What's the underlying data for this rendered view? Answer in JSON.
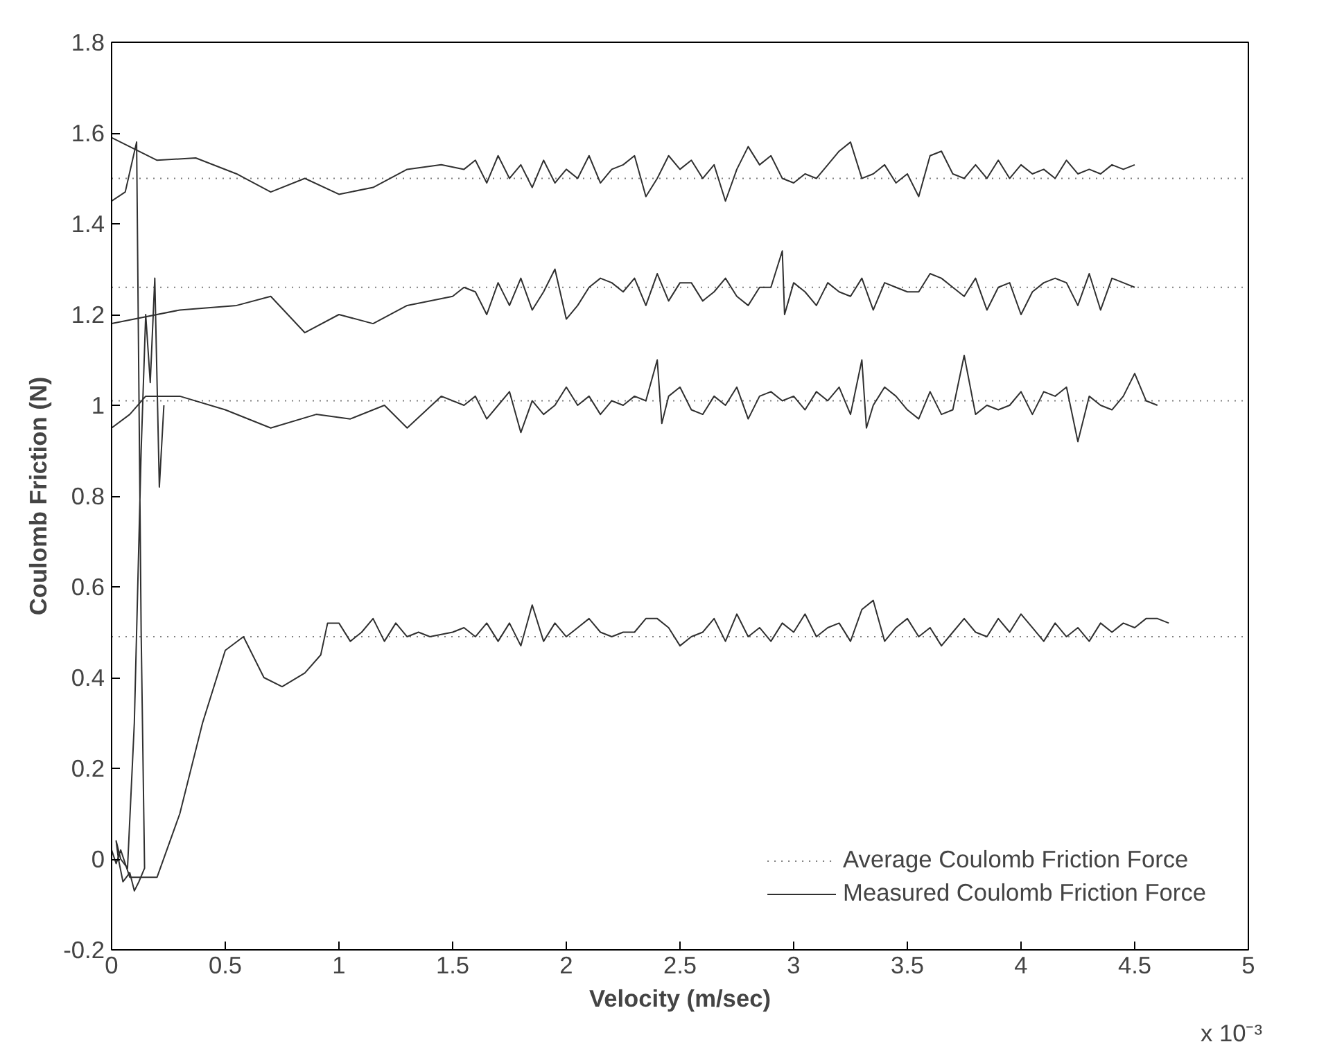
{
  "chart_data": {
    "type": "line",
    "xlabel": "Velocity (m/sec)",
    "ylabel": "Coulomb Friction (N)",
    "xlim": [
      0,
      5
    ],
    "ylim": [
      -0.2,
      1.8
    ],
    "xticks": [
      0,
      0.5,
      1,
      1.5,
      2,
      2.5,
      3,
      3.5,
      4,
      4.5,
      5
    ],
    "yticks": [
      -0.2,
      0,
      0.2,
      0.4,
      0.6,
      0.8,
      1,
      1.2,
      1.4,
      1.6,
      1.8
    ],
    "legend": "bottom right",
    "annotations": [
      "x 10⁻³"
    ],
    "series": [
      {
        "name": "Average Coulomb Friction Force",
        "color": "#808080",
        "line_style": "dotted",
        "x": [
          0,
          5
        ],
        "values": [
          1.5,
          1.5
        ]
      },
      {
        "color": "#808080",
        "line_style": "dotted",
        "x": [
          0,
          5
        ],
        "values": [
          1.26,
          1.26
        ]
      },
      {
        "color": "#808080",
        "line_style": "dotted",
        "x": [
          0,
          5
        ],
        "values": [
          1.01,
          1.01
        ]
      },
      {
        "color": "#808080",
        "line_style": "dotted",
        "x": [
          0,
          5
        ],
        "values": [
          0.49,
          0.49
        ]
      },
      {
        "name": "Measured Coulomb Friction Force",
        "color": "#303030",
        "line_style": "solid",
        "x": [
          0,
          0.2,
          0.37,
          0.55,
          0.7,
          0.85,
          1.0,
          1.15,
          1.3,
          1.45,
          1.55,
          1.6,
          1.65,
          1.7,
          1.75,
          1.8,
          1.85,
          1.9,
          1.95,
          2.0,
          2.05,
          2.1,
          2.15,
          2.2,
          2.25,
          2.3,
          2.35,
          2.4,
          2.45,
          2.5,
          2.55,
          2.6,
          2.65,
          2.7,
          2.75,
          2.8,
          2.85,
          2.9,
          2.95,
          3.0,
          3.05,
          3.1,
          3.15,
          3.2,
          3.25,
          3.3,
          3.35,
          3.4,
          3.45,
          3.5,
          3.55,
          3.6,
          3.65,
          3.7,
          3.75,
          3.8,
          3.85,
          3.9,
          3.95,
          4.0,
          4.05,
          4.1,
          4.15,
          4.2,
          4.25,
          4.3,
          4.35,
          4.4,
          4.45,
          4.5
        ],
        "values": [
          1.59,
          1.54,
          1.545,
          1.51,
          1.47,
          1.5,
          1.465,
          1.48,
          1.52,
          1.53,
          1.52,
          1.54,
          1.49,
          1.55,
          1.5,
          1.53,
          1.48,
          1.54,
          1.49,
          1.52,
          1.5,
          1.55,
          1.49,
          1.52,
          1.53,
          1.55,
          1.46,
          1.5,
          1.55,
          1.52,
          1.54,
          1.5,
          1.53,
          1.45,
          1.52,
          1.57,
          1.53,
          1.55,
          1.5,
          1.49,
          1.51,
          1.5,
          1.53,
          1.56,
          1.58,
          1.5,
          1.51,
          1.53,
          1.49,
          1.51,
          1.46,
          1.55,
          1.56,
          1.51,
          1.5,
          1.53,
          1.5,
          1.54,
          1.5,
          1.53,
          1.51,
          1.52,
          1.5,
          1.54,
          1.51,
          1.52,
          1.51,
          1.53,
          1.52,
          1.53
        ]
      },
      {
        "color": "#303030",
        "line_style": "solid",
        "x": [
          0,
          0.3,
          0.55,
          0.7,
          0.85,
          1.0,
          1.15,
          1.3,
          1.5,
          1.55,
          1.6,
          1.65,
          1.7,
          1.75,
          1.8,
          1.85,
          1.9,
          1.95,
          2.0,
          2.05,
          2.1,
          2.15,
          2.2,
          2.25,
          2.3,
          2.35,
          2.4,
          2.45,
          2.5,
          2.55,
          2.6,
          2.65,
          2.7,
          2.75,
          2.8,
          2.85,
          2.9,
          2.95,
          2.96,
          3.0,
          3.05,
          3.1,
          3.15,
          3.2,
          3.25,
          3.3,
          3.35,
          3.4,
          3.45,
          3.5,
          3.55,
          3.6,
          3.65,
          3.7,
          3.75,
          3.8,
          3.85,
          3.9,
          3.95,
          4.0,
          4.05,
          4.1,
          4.15,
          4.2,
          4.25,
          4.3,
          4.35,
          4.4,
          4.45,
          4.5
        ],
        "values": [
          1.18,
          1.21,
          1.22,
          1.24,
          1.16,
          1.2,
          1.18,
          1.22,
          1.24,
          1.26,
          1.25,
          1.2,
          1.27,
          1.22,
          1.28,
          1.21,
          1.25,
          1.3,
          1.19,
          1.22,
          1.26,
          1.28,
          1.27,
          1.25,
          1.28,
          1.22,
          1.29,
          1.23,
          1.27,
          1.27,
          1.23,
          1.25,
          1.28,
          1.24,
          1.22,
          1.26,
          1.26,
          1.34,
          1.2,
          1.27,
          1.25,
          1.22,
          1.27,
          1.25,
          1.24,
          1.28,
          1.21,
          1.27,
          1.26,
          1.25,
          1.25,
          1.29,
          1.28,
          1.26,
          1.24,
          1.28,
          1.21,
          1.26,
          1.27,
          1.2,
          1.25,
          1.27,
          1.28,
          1.27,
          1.22,
          1.29,
          1.21,
          1.28,
          1.27,
          1.26
        ]
      },
      {
        "color": "#303030",
        "line_style": "solid",
        "x": [
          0,
          0.08,
          0.15,
          0.3,
          0.5,
          0.7,
          0.9,
          1.05,
          1.2,
          1.3,
          1.45,
          1.55,
          1.6,
          1.65,
          1.7,
          1.75,
          1.8,
          1.85,
          1.9,
          1.95,
          2.0,
          2.05,
          2.1,
          2.15,
          2.2,
          2.25,
          2.3,
          2.35,
          2.4,
          2.42,
          2.45,
          2.5,
          2.55,
          2.6,
          2.65,
          2.7,
          2.75,
          2.8,
          2.85,
          2.9,
          2.95,
          3.0,
          3.05,
          3.1,
          3.15,
          3.2,
          3.25,
          3.3,
          3.32,
          3.35,
          3.4,
          3.45,
          3.5,
          3.55,
          3.6,
          3.65,
          3.7,
          3.75,
          3.8,
          3.85,
          3.9,
          3.95,
          4.0,
          4.05,
          4.1,
          4.15,
          4.2,
          4.25,
          4.3,
          4.35,
          4.4,
          4.45,
          4.5,
          4.55,
          4.6
        ],
        "values": [
          0.95,
          0.98,
          1.02,
          1.02,
          0.99,
          0.95,
          0.98,
          0.97,
          1.0,
          0.95,
          1.02,
          1.0,
          1.02,
          0.97,
          1.0,
          1.03,
          0.94,
          1.01,
          0.98,
          1.0,
          1.04,
          1.0,
          1.02,
          0.98,
          1.01,
          1.0,
          1.02,
          1.01,
          1.1,
          0.96,
          1.02,
          1.04,
          0.99,
          0.98,
          1.02,
          1.0,
          1.04,
          0.97,
          1.02,
          1.03,
          1.01,
          1.02,
          0.99,
          1.03,
          1.01,
          1.04,
          0.98,
          1.1,
          0.95,
          1.0,
          1.04,
          1.02,
          0.99,
          0.97,
          1.03,
          0.98,
          0.99,
          1.11,
          0.98,
          1.0,
          0.99,
          1.0,
          1.03,
          0.98,
          1.03,
          1.02,
          1.04,
          0.92,
          1.02,
          1.0,
          0.99,
          1.02,
          1.07,
          1.01,
          1.0
        ]
      },
      {
        "color": "#303030",
        "line_style": "solid",
        "x": [
          0,
          0.02,
          0.04,
          0.06,
          0.08,
          0.1,
          0.2,
          0.3,
          0.4,
          0.5,
          0.58,
          0.67,
          0.75,
          0.85,
          0.92,
          0.95,
          1.0,
          1.05,
          1.1,
          1.15,
          1.2,
          1.25,
          1.3,
          1.35,
          1.4,
          1.5,
          1.55,
          1.6,
          1.65,
          1.7,
          1.75,
          1.8,
          1.85,
          1.9,
          1.95,
          2.0,
          2.05,
          2.1,
          2.15,
          2.2,
          2.25,
          2.3,
          2.35,
          2.4,
          2.45,
          2.5,
          2.55,
          2.6,
          2.65,
          2.7,
          2.75,
          2.8,
          2.85,
          2.9,
          2.95,
          3.0,
          3.05,
          3.1,
          3.15,
          3.2,
          3.25,
          3.3,
          3.35,
          3.4,
          3.45,
          3.5,
          3.55,
          3.6,
          3.65,
          3.7,
          3.75,
          3.8,
          3.85,
          3.9,
          3.95,
          4.0,
          4.05,
          4.1,
          4.15,
          4.2,
          4.25,
          4.3,
          4.35,
          4.4,
          4.45,
          4.5,
          4.55,
          4.6,
          4.65
        ],
        "values": [
          0.02,
          -0.01,
          0.02,
          -0.01,
          -0.04,
          -0.04,
          -0.04,
          0.1,
          0.3,
          0.46,
          0.49,
          0.4,
          0.38,
          0.41,
          0.45,
          0.52,
          0.52,
          0.48,
          0.5,
          0.53,
          0.48,
          0.52,
          0.49,
          0.5,
          0.49,
          0.5,
          0.51,
          0.49,
          0.52,
          0.48,
          0.52,
          0.47,
          0.56,
          0.48,
          0.52,
          0.49,
          0.51,
          0.53,
          0.5,
          0.49,
          0.5,
          0.5,
          0.53,
          0.53,
          0.51,
          0.47,
          0.49,
          0.5,
          0.53,
          0.48,
          0.54,
          0.49,
          0.51,
          0.48,
          0.52,
          0.5,
          0.54,
          0.49,
          0.51,
          0.52,
          0.48,
          0.55,
          0.57,
          0.48,
          0.51,
          0.53,
          0.49,
          0.51,
          0.47,
          0.5,
          0.53,
          0.5,
          0.49,
          0.53,
          0.5,
          0.54,
          0.51,
          0.48,
          0.52,
          0.49,
          0.51,
          0.48,
          0.52,
          0.5,
          0.52,
          0.51,
          0.53,
          0.53,
          0.52
        ]
      },
      {
        "color": "#303030",
        "line_style": "solid",
        "x": [
          0,
          0.06,
          0.11,
          0.13,
          0.145,
          0.12,
          0.1,
          0.08,
          0.05,
          0.03,
          0.02,
          0.04,
          0.07,
          0.1,
          0.13,
          0.15,
          0.17,
          0.19,
          0.21,
          0.23
        ],
        "values": [
          1.45,
          1.47,
          1.58,
          0.5,
          -0.02,
          -0.05,
          -0.07,
          -0.03,
          -0.05,
          0.0,
          0.04,
          0.0,
          -0.02,
          0.3,
          0.9,
          1.2,
          1.05,
          1.28,
          0.82,
          1.0
        ]
      }
    ]
  }
}
